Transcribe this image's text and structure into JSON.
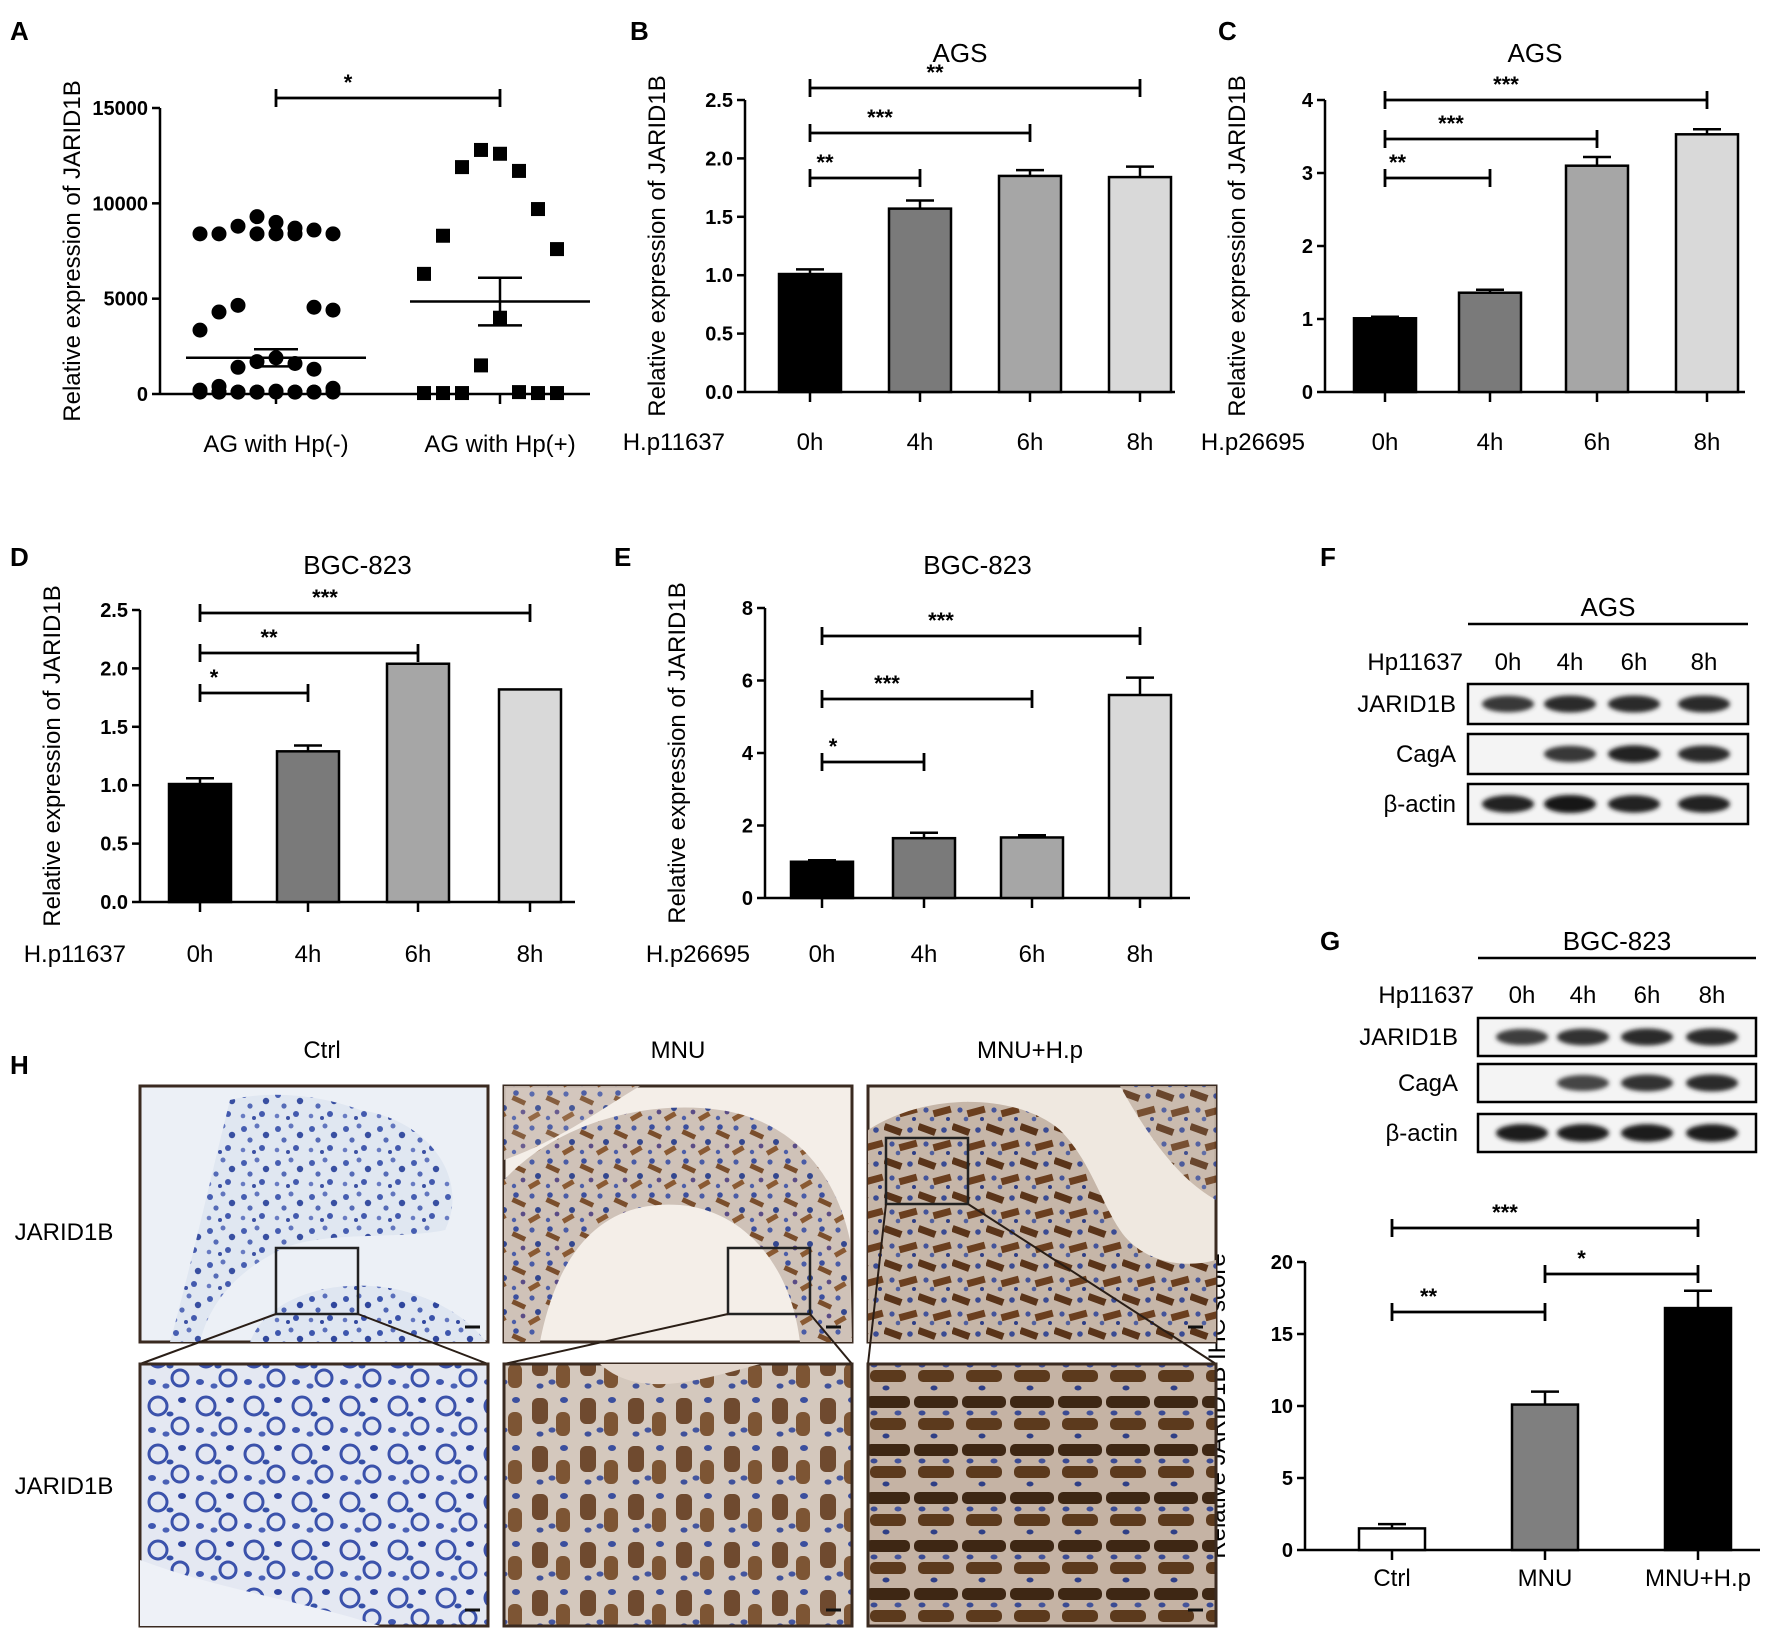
{
  "panel_letters": {
    "A": "A",
    "B": "B",
    "C": "C",
    "D": "D",
    "E": "E",
    "F": "F",
    "G": "G",
    "H": "H"
  },
  "chart_data": [
    {
      "id": "A",
      "type": "scatter",
      "title": "",
      "ylabel": "Relative expression of JARID1B",
      "ylim": [
        0,
        15000
      ],
      "yticks": [
        "0",
        "5000",
        "10000",
        "15000"
      ],
      "categories": [
        "AG with Hp(-)",
        "AG with Hp(+)"
      ],
      "groups": [
        {
          "name": "AG with Hp(-)",
          "marker": "circle",
          "mean": 1900,
          "sem_upper": 2350,
          "sem_lower": 1450,
          "points": [
            9000,
            9300,
            8700,
            8800,
            8600,
            8400,
            8400,
            8400,
            8400,
            8400,
            8400,
            4650,
            4550,
            4300,
            4400,
            3350,
            1900,
            1700,
            1600,
            1400,
            1300,
            400,
            300,
            200,
            150,
            100,
            100,
            100,
            100,
            100,
            100,
            100,
            100,
            100,
            100,
            100,
            100,
            100
          ]
        },
        {
          "name": "AG with Hp(+)",
          "marker": "square",
          "mean": 4850,
          "sem_upper": 6100,
          "sem_lower": 3600,
          "points": [
            12600,
            12800,
            11700,
            11900,
            9700,
            8300,
            7600,
            6300,
            4000,
            1500,
            100,
            50,
            50,
            50,
            50,
            50
          ]
        }
      ],
      "significance": [
        {
          "from": 0,
          "to": 1,
          "label": "*"
        }
      ]
    },
    {
      "id": "B",
      "type": "bar",
      "title": "AGS",
      "ylabel": "Relative expression of JARID1B",
      "ylim": [
        0,
        2.5
      ],
      "yticks": [
        "0.0",
        "0.5",
        "1.0",
        "1.5",
        "2.0",
        "2.5"
      ],
      "x_prefix": "H.p11637",
      "categories": [
        "0h",
        "4h",
        "6h",
        "8h"
      ],
      "values": [
        1.01,
        1.57,
        1.85,
        1.84
      ],
      "errors": [
        0.04,
        0.07,
        0.05,
        0.09
      ],
      "colors": [
        "#000000",
        "#7a7a7a",
        "#a6a6a6",
        "#d9d9d9"
      ],
      "significance": [
        {
          "from": 0,
          "to": 1,
          "label": "**"
        },
        {
          "from": 0,
          "to": 2,
          "label": "***"
        },
        {
          "from": 0,
          "to": 3,
          "label": "**"
        }
      ]
    },
    {
      "id": "C",
      "type": "bar",
      "title": "AGS",
      "ylabel": "Relative expression of JARID1B",
      "ylim": [
        0,
        4
      ],
      "yticks": [
        "0",
        "1",
        "2",
        "3",
        "4"
      ],
      "x_prefix": "H.p26695",
      "categories": [
        "0h",
        "4h",
        "6h",
        "8h"
      ],
      "values": [
        1.01,
        1.36,
        3.1,
        3.53
      ],
      "errors": [
        0.02,
        0.04,
        0.12,
        0.07
      ],
      "colors": [
        "#000000",
        "#7a7a7a",
        "#a6a6a6",
        "#d9d9d9"
      ],
      "significance": [
        {
          "from": 0,
          "to": 1,
          "label": "**"
        },
        {
          "from": 0,
          "to": 2,
          "label": "***"
        },
        {
          "from": 0,
          "to": 3,
          "label": "***"
        }
      ]
    },
    {
      "id": "D",
      "type": "bar",
      "title": "BGC-823",
      "ylabel": "Relative expression of JARID1B",
      "ylim": [
        0,
        2.5
      ],
      "yticks": [
        "0.0",
        "0.5",
        "1.0",
        "1.5",
        "2.0",
        "2.5"
      ],
      "x_prefix": "H.p11637",
      "categories": [
        "0h",
        "4h",
        "6h",
        "8h"
      ],
      "values": [
        1.01,
        1.29,
        2.04,
        1.82
      ],
      "errors": [
        0.05,
        0.05,
        0.0,
        0.0
      ],
      "colors": [
        "#000000",
        "#7a7a7a",
        "#a6a6a6",
        "#d9d9d9"
      ],
      "significance": [
        {
          "from": 0,
          "to": 1,
          "label": "*"
        },
        {
          "from": 0,
          "to": 2,
          "label": "**"
        },
        {
          "from": 0,
          "to": 3,
          "label": "***"
        }
      ]
    },
    {
      "id": "E",
      "type": "bar",
      "title": "BGC-823",
      "ylabel": "Relative expression of JARID1B",
      "ylim": [
        0,
        8
      ],
      "yticks": [
        "0",
        "2",
        "4",
        "6",
        "8"
      ],
      "x_prefix": "H.p26695",
      "categories": [
        "0h",
        "4h",
        "6h",
        "8h"
      ],
      "values": [
        1.0,
        1.65,
        1.67,
        5.6
      ],
      "errors": [
        0.04,
        0.15,
        0.06,
        0.48
      ],
      "colors": [
        "#000000",
        "#7a7a7a",
        "#a6a6a6",
        "#d9d9d9"
      ],
      "significance": [
        {
          "from": 0,
          "to": 1,
          "label": "*"
        },
        {
          "from": 0,
          "to": 2,
          "label": "***"
        },
        {
          "from": 0,
          "to": 3,
          "label": "***"
        }
      ]
    },
    {
      "id": "H-score",
      "type": "bar",
      "title": "",
      "ylabel": "Relative JARID1B IHC score",
      "ylim": [
        0,
        20
      ],
      "yticks": [
        "0",
        "5",
        "10",
        "15",
        "20"
      ],
      "categories": [
        "Ctrl",
        "MNU",
        "MNU+H.p"
      ],
      "values": [
        1.5,
        10.1,
        16.8
      ],
      "errors": [
        0.3,
        0.9,
        1.2
      ],
      "colors": [
        "#ffffff",
        "#7f7f7f",
        "#000000"
      ],
      "significance": [
        {
          "from": 0,
          "to": 1,
          "label": "**"
        },
        {
          "from": 1,
          "to": 2,
          "label": "*"
        },
        {
          "from": 0,
          "to": 2,
          "label": "***"
        }
      ]
    }
  ],
  "blots": [
    {
      "id": "F",
      "cell_line": "AGS",
      "treatment": "Hp11637",
      "lanes": [
        "0h",
        "4h",
        "6h",
        "8h"
      ],
      "rows": [
        {
          "label": "JARID1B",
          "intensity": [
            0.75,
            0.85,
            0.85,
            0.85
          ]
        },
        {
          "label": "CagA",
          "intensity": [
            0.0,
            0.75,
            0.9,
            0.85
          ]
        },
        {
          "label": "β-actin",
          "intensity": [
            0.9,
            1.0,
            0.9,
            0.9
          ]
        }
      ]
    },
    {
      "id": "G",
      "cell_line": "BGC-823",
      "treatment": "Hp11637",
      "lanes": [
        "0h",
        "4h",
        "6h",
        "8h"
      ],
      "rows": [
        {
          "label": "JARID1B",
          "intensity": [
            0.7,
            0.8,
            0.85,
            0.85
          ]
        },
        {
          "label": "CagA",
          "intensity": [
            0.0,
            0.65,
            0.8,
            0.85
          ]
        },
        {
          "label": "β-actin",
          "intensity": [
            0.95,
            0.95,
            0.95,
            0.95
          ]
        }
      ]
    }
  ],
  "ihc": {
    "columns": [
      "Ctrl",
      "MNU",
      "MNU+H.p"
    ],
    "row_labels": [
      "JARID1B",
      "JARID1B"
    ],
    "colors": {
      "hematoxylin": "#3a4fa8",
      "dab": "#7a4a26",
      "background": "#e8edf3"
    }
  }
}
